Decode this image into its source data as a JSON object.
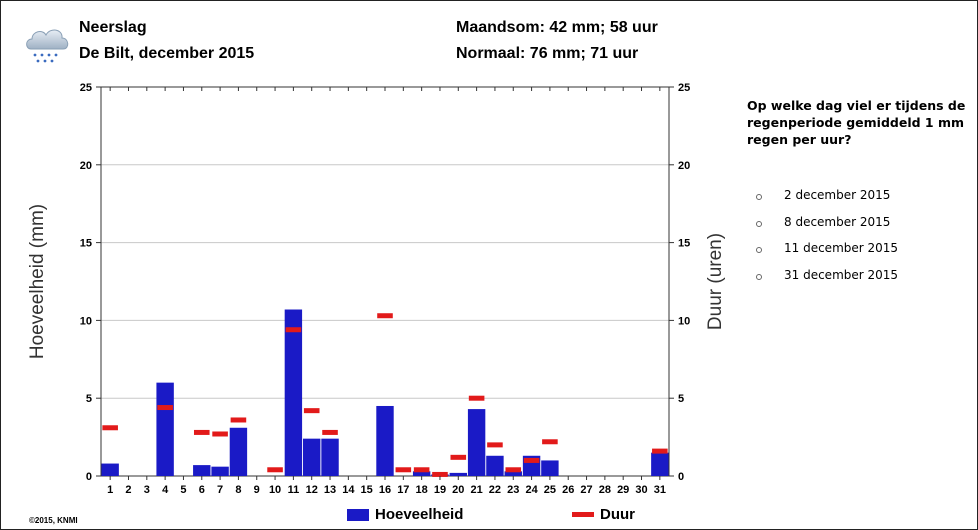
{
  "header": {
    "title": "Neerslag",
    "subtitle": "De Bilt, december 2015",
    "monthly_sum": "Maandsom: 42 mm; 58 uur",
    "normal": "Normaal: 76 mm; 71 uur"
  },
  "icon": "rain-cloud-icon",
  "copyright": "©2015, KNMI",
  "legend": {
    "amount": "Hoeveelheid",
    "duration": "Duur"
  },
  "colors": {
    "bar": "#1a1ac6",
    "duration": "#e21a1a"
  },
  "chart_data": {
    "type": "bar",
    "x": [
      1,
      2,
      3,
      4,
      5,
      6,
      7,
      8,
      9,
      10,
      11,
      12,
      13,
      14,
      15,
      16,
      17,
      18,
      19,
      20,
      21,
      22,
      23,
      24,
      25,
      26,
      27,
      28,
      29,
      30,
      31
    ],
    "xtick_labels": [
      "1",
      "2",
      "3",
      "4",
      "5",
      "6",
      "7",
      "8",
      "9",
      "10",
      "11",
      "12",
      "13",
      "14",
      "15",
      "16",
      "17",
      "18",
      "19",
      "20",
      "21",
      "22",
      "23",
      "24",
      "25",
      "26",
      "27",
      "28",
      "29",
      "30",
      "31"
    ],
    "series": [
      {
        "name": "Hoeveelheid",
        "axis": "left",
        "kind": "bar",
        "values": [
          0.8,
          0,
          0,
          6.0,
          0,
          0.7,
          0.6,
          3.1,
          0,
          0,
          10.7,
          2.4,
          2.4,
          0,
          0,
          4.5,
          0,
          0.3,
          0.1,
          0.2,
          4.3,
          1.3,
          0.3,
          1.3,
          1.0,
          0,
          0,
          0,
          0,
          0,
          1.5
        ]
      },
      {
        "name": "Duur",
        "axis": "right",
        "kind": "marker",
        "values": [
          3.1,
          null,
          null,
          4.4,
          null,
          2.8,
          2.7,
          3.6,
          null,
          0.4,
          9.4,
          4.2,
          2.8,
          null,
          null,
          10.3,
          0.4,
          0.4,
          0.1,
          1.2,
          5.0,
          2.0,
          0.4,
          1.0,
          2.2,
          null,
          null,
          null,
          null,
          null,
          1.6
        ]
      }
    ],
    "ylabel": "Hoeveelheid (mm)",
    "y2label": "Duur (uren)",
    "ylim": [
      0,
      25
    ],
    "y2lim": [
      0,
      25
    ],
    "yticks": [
      0,
      5,
      10,
      15,
      20,
      25
    ],
    "grid": true,
    "legend_position": "bottom"
  },
  "question": {
    "text": "Op welke dag viel er tijdens de regenperiode gemiddeld 1 mm regen per uur?",
    "options": [
      "2 december 2015",
      "8 december 2015",
      "11 december 2015",
      "31 december 2015"
    ]
  }
}
